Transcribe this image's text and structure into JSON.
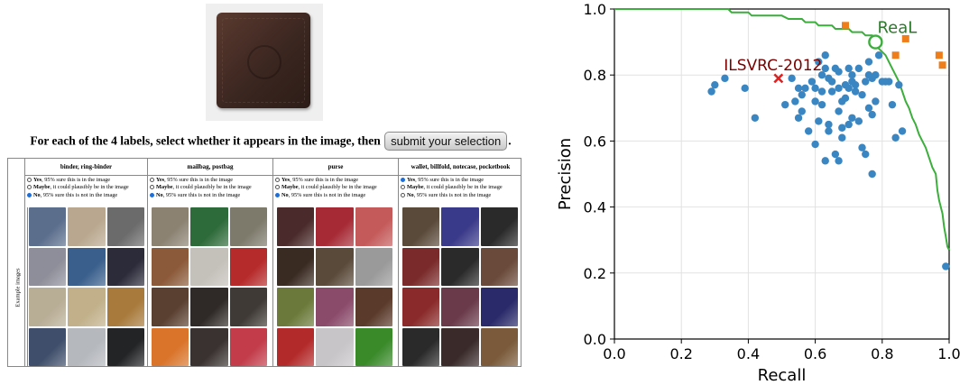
{
  "query_image": {
    "alt": "wallet"
  },
  "instruction": {
    "lead": "For each of the 4 labels, select whether it appears in the image, then",
    "submit_label": "submit your selection",
    "trail": "."
  },
  "table": {
    "side_label": "Example images",
    "columns": [
      {
        "header": "binder, ring-binder",
        "selected": 2,
        "thumbs": [
          "#5b6e8c",
          "#b9a88f",
          "#6b6b6b",
          "#8e8e9a",
          "#3a5f8c",
          "#2b2b3a",
          "#b8ad95",
          "#c1b08a",
          "#a87a3c",
          "#3f4e6a",
          "#b5b8bd",
          "#222426"
        ]
      },
      {
        "header": "mailbag, postbag",
        "selected": 2,
        "thumbs": [
          "#8b8272",
          "#2e6b3a",
          "#7d7a6c",
          "#8b5a3a",
          "#c4c0ba",
          "#b52a2a",
          "#5a4030",
          "#2f2a27",
          "#3f3a35",
          "#d9742a",
          "#3a3230",
          "#c23c4a"
        ]
      },
      {
        "header": "purse",
        "selected": 2,
        "thumbs": [
          "#4a2a2a",
          "#a52a35",
          "#c45a5a",
          "#3a2b22",
          "#5a4a3a",
          "#9a9a9a",
          "#6b7a3a",
          "#8a4a6a",
          "#5a3a2a",
          "#b32a2a",
          "#c8c5c8",
          "#3a8a2a"
        ]
      },
      {
        "header": "wallet, billfold, notecase, pocketbook",
        "selected": 0,
        "thumbs": [
          "#5a4a3a",
          "#3a3a8a",
          "#2a2a2a",
          "#7a2a2a",
          "#2a2a2a",
          "#6a4a3a",
          "#8a2a2a",
          "#6a3a4a",
          "#2a2a6a",
          "#2a2a2a",
          "#3a2a2a",
          "#7a5a3a"
        ]
      }
    ],
    "options": [
      {
        "bold": "Yes",
        "rest": ", 95% sure this is in the image"
      },
      {
        "bold": "Maybe",
        "rest": ", it could plausibly be in the image"
      },
      {
        "bold": "No",
        "rest": ", 95% sure this is not in the image"
      }
    ]
  },
  "chart_data": {
    "type": "scatter",
    "xlabel": "Recall",
    "ylabel": "Precision",
    "xlim": [
      0.0,
      1.0
    ],
    "ylim": [
      0.0,
      1.0
    ],
    "xticks": [
      "0.0",
      "0.2",
      "0.4",
      "0.6",
      "0.8",
      "1.0"
    ],
    "yticks": [
      "0.0",
      "0.2",
      "0.4",
      "0.6",
      "0.8",
      "1.0"
    ],
    "grid": true,
    "colors": {
      "points": "#3a86c2",
      "orange": "#ef7d1a",
      "curve": "#3cae3c",
      "ilsvrc": "#e02020",
      "ilsvrc_text": "#7a0000",
      "real_text": "#2a7a2a"
    },
    "annotations": [
      {
        "text": "ILSVRC-2012",
        "x": 0.49,
        "y": 0.79,
        "marker": "x"
      },
      {
        "text": "ReaL",
        "x": 0.78,
        "y": 0.9,
        "marker": "o"
      }
    ],
    "blue_points": [
      [
        0.29,
        0.75
      ],
      [
        0.3,
        0.77
      ],
      [
        0.33,
        0.79
      ],
      [
        0.39,
        0.76
      ],
      [
        0.42,
        0.67
      ],
      [
        0.51,
        0.71
      ],
      [
        0.53,
        0.79
      ],
      [
        0.54,
        0.72
      ],
      [
        0.55,
        0.76
      ],
      [
        0.55,
        0.67
      ],
      [
        0.56,
        0.74
      ],
      [
        0.56,
        0.69
      ],
      [
        0.57,
        0.76
      ],
      [
        0.58,
        0.63
      ],
      [
        0.59,
        0.78
      ],
      [
        0.6,
        0.76
      ],
      [
        0.6,
        0.72
      ],
      [
        0.6,
        0.59
      ],
      [
        0.61,
        0.66
      ],
      [
        0.61,
        0.84
      ],
      [
        0.62,
        0.8
      ],
      [
        0.62,
        0.75
      ],
      [
        0.62,
        0.71
      ],
      [
        0.63,
        0.86
      ],
      [
        0.63,
        0.82
      ],
      [
        0.63,
        0.54
      ],
      [
        0.64,
        0.65
      ],
      [
        0.64,
        0.79
      ],
      [
        0.64,
        0.63
      ],
      [
        0.65,
        0.78
      ],
      [
        0.65,
        0.75
      ],
      [
        0.66,
        0.82
      ],
      [
        0.66,
        0.56
      ],
      [
        0.67,
        0.81
      ],
      [
        0.67,
        0.76
      ],
      [
        0.67,
        0.69
      ],
      [
        0.67,
        0.54
      ],
      [
        0.68,
        0.72
      ],
      [
        0.68,
        0.64
      ],
      [
        0.68,
        0.61
      ],
      [
        0.69,
        0.77
      ],
      [
        0.69,
        0.73
      ],
      [
        0.7,
        0.82
      ],
      [
        0.7,
        0.76
      ],
      [
        0.7,
        0.65
      ],
      [
        0.71,
        0.8
      ],
      [
        0.71,
        0.78
      ],
      [
        0.71,
        0.67
      ],
      [
        0.72,
        0.77
      ],
      [
        0.72,
        0.75
      ],
      [
        0.73,
        0.82
      ],
      [
        0.73,
        0.66
      ],
      [
        0.74,
        0.74
      ],
      [
        0.74,
        0.58
      ],
      [
        0.75,
        0.78
      ],
      [
        0.75,
        0.56
      ],
      [
        0.76,
        0.84
      ],
      [
        0.76,
        0.8
      ],
      [
        0.76,
        0.7
      ],
      [
        0.77,
        0.79
      ],
      [
        0.77,
        0.68
      ],
      [
        0.77,
        0.5
      ],
      [
        0.78,
        0.8
      ],
      [
        0.78,
        0.72
      ],
      [
        0.79,
        0.86
      ],
      [
        0.8,
        0.78
      ],
      [
        0.81,
        0.78
      ],
      [
        0.82,
        0.78
      ],
      [
        0.83,
        0.71
      ],
      [
        0.84,
        0.61
      ],
      [
        0.85,
        0.77
      ],
      [
        0.86,
        0.63
      ],
      [
        0.99,
        0.22
      ]
    ],
    "orange_points": [
      [
        0.69,
        0.95
      ],
      [
        0.84,
        0.86
      ],
      [
        0.87,
        0.91
      ],
      [
        0.97,
        0.86
      ],
      [
        0.98,
        0.83
      ]
    ],
    "curve": [
      [
        0.0,
        1.0
      ],
      [
        0.34,
        1.0
      ],
      [
        0.35,
        0.99
      ],
      [
        0.4,
        0.99
      ],
      [
        0.41,
        0.98
      ],
      [
        0.5,
        0.98
      ],
      [
        0.52,
        0.97
      ],
      [
        0.56,
        0.97
      ],
      [
        0.57,
        0.96
      ],
      [
        0.6,
        0.96
      ],
      [
        0.61,
        0.95
      ],
      [
        0.65,
        0.95
      ],
      [
        0.66,
        0.94
      ],
      [
        0.7,
        0.94
      ],
      [
        0.71,
        0.93
      ],
      [
        0.74,
        0.93
      ],
      [
        0.75,
        0.92
      ],
      [
        0.77,
        0.92
      ],
      [
        0.78,
        0.91
      ],
      [
        0.79,
        0.88
      ],
      [
        0.8,
        0.87
      ],
      [
        0.81,
        0.86
      ],
      [
        0.82,
        0.84
      ],
      [
        0.83,
        0.82
      ],
      [
        0.84,
        0.8
      ],
      [
        0.85,
        0.78
      ],
      [
        0.86,
        0.75
      ],
      [
        0.87,
        0.72
      ],
      [
        0.88,
        0.7
      ],
      [
        0.89,
        0.67
      ],
      [
        0.9,
        0.65
      ],
      [
        0.91,
        0.62
      ],
      [
        0.92,
        0.6
      ],
      [
        0.93,
        0.58
      ],
      [
        0.94,
        0.55
      ],
      [
        0.95,
        0.52
      ],
      [
        0.96,
        0.5
      ],
      [
        0.965,
        0.45
      ],
      [
        0.97,
        0.42
      ],
      [
        0.98,
        0.38
      ],
      [
        0.985,
        0.34
      ],
      [
        0.99,
        0.31
      ],
      [
        0.995,
        0.28
      ],
      [
        1.0,
        0.27
      ]
    ]
  }
}
